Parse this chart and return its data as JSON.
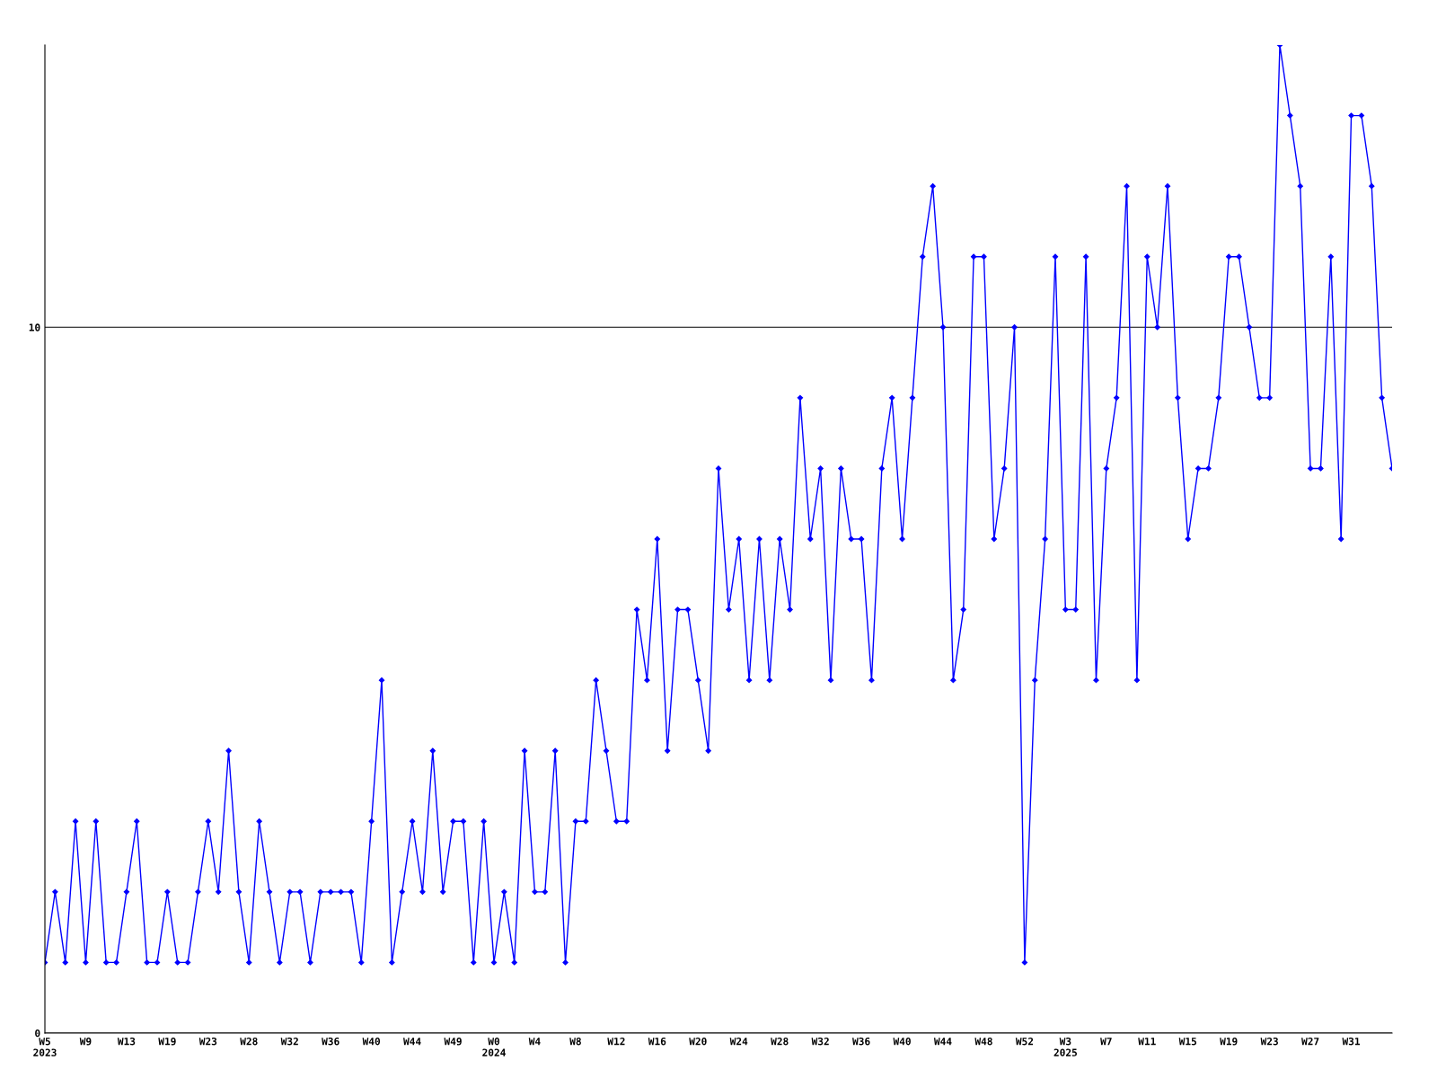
{
  "chart_data": {
    "type": "line",
    "categories": [
      "W5\n2023",
      null,
      null,
      null,
      "W9",
      null,
      null,
      null,
      "W13",
      null,
      null,
      null,
      "W19",
      null,
      null,
      null,
      "W23",
      null,
      null,
      null,
      "W28",
      null,
      null,
      null,
      "W32",
      null,
      null,
      null,
      "W36",
      null,
      null,
      null,
      "W40",
      null,
      null,
      null,
      "W44",
      null,
      null,
      null,
      "W49",
      null,
      null,
      null,
      "W0\n2024",
      null,
      null,
      null,
      "W4",
      null,
      null,
      null,
      "W8",
      null,
      null,
      null,
      "W12",
      null,
      null,
      null,
      "W16",
      null,
      null,
      null,
      "W20",
      null,
      null,
      null,
      "W24",
      null,
      null,
      null,
      "W28",
      null,
      null,
      null,
      "W32",
      null,
      null,
      null,
      "W36",
      null,
      null,
      null,
      "W40",
      null,
      null,
      null,
      "W44",
      null,
      null,
      null,
      "W48",
      null,
      null,
      null,
      "W52",
      null,
      null,
      null,
      "W3\n2025",
      null,
      null,
      null,
      "W7",
      null,
      null,
      null,
      "W11",
      null,
      null,
      null,
      "W15",
      null,
      null,
      null,
      "W19",
      null,
      null,
      null,
      "W23",
      null,
      null,
      null,
      "W27",
      null,
      null,
      null,
      "W31",
      null,
      null,
      null,
      null
    ],
    "series": [
      {
        "color": "#0000ff",
        "values": [
          1,
          2,
          1,
          3,
          1,
          3,
          1,
          1,
          2,
          3,
          1,
          1,
          2,
          1,
          1,
          2,
          3,
          2,
          4,
          2,
          1,
          3,
          2,
          1,
          2,
          2,
          1,
          2,
          2,
          2,
          2,
          1,
          3,
          5,
          1,
          2,
          3,
          2,
          4,
          2,
          3,
          3,
          1,
          3,
          1,
          2,
          1,
          4,
          2,
          2,
          4,
          1,
          3,
          3,
          5,
          4,
          3,
          3,
          6,
          5,
          7,
          4,
          6,
          6,
          5,
          4,
          8,
          6,
          7,
          5,
          7,
          5,
          7,
          6,
          9,
          7,
          8,
          5,
          8,
          7,
          7,
          5,
          8,
          9,
          7,
          9,
          11,
          12,
          10,
          5,
          6,
          11,
          11,
          7,
          8,
          10,
          1,
          5,
          7,
          11,
          6,
          6,
          11,
          5,
          8,
          9,
          12,
          5,
          11,
          10,
          12,
          9,
          7,
          8,
          8,
          9,
          11,
          11,
          10,
          9,
          9,
          14,
          13,
          12,
          8,
          8,
          11,
          7,
          13,
          13,
          12,
          9,
          8
        ]
      }
    ],
    "ylim": [
      0,
      14
    ],
    "yticks": [
      0,
      10
    ],
    "grid": "y",
    "marker": "diamond",
    "line_style": "solid"
  }
}
